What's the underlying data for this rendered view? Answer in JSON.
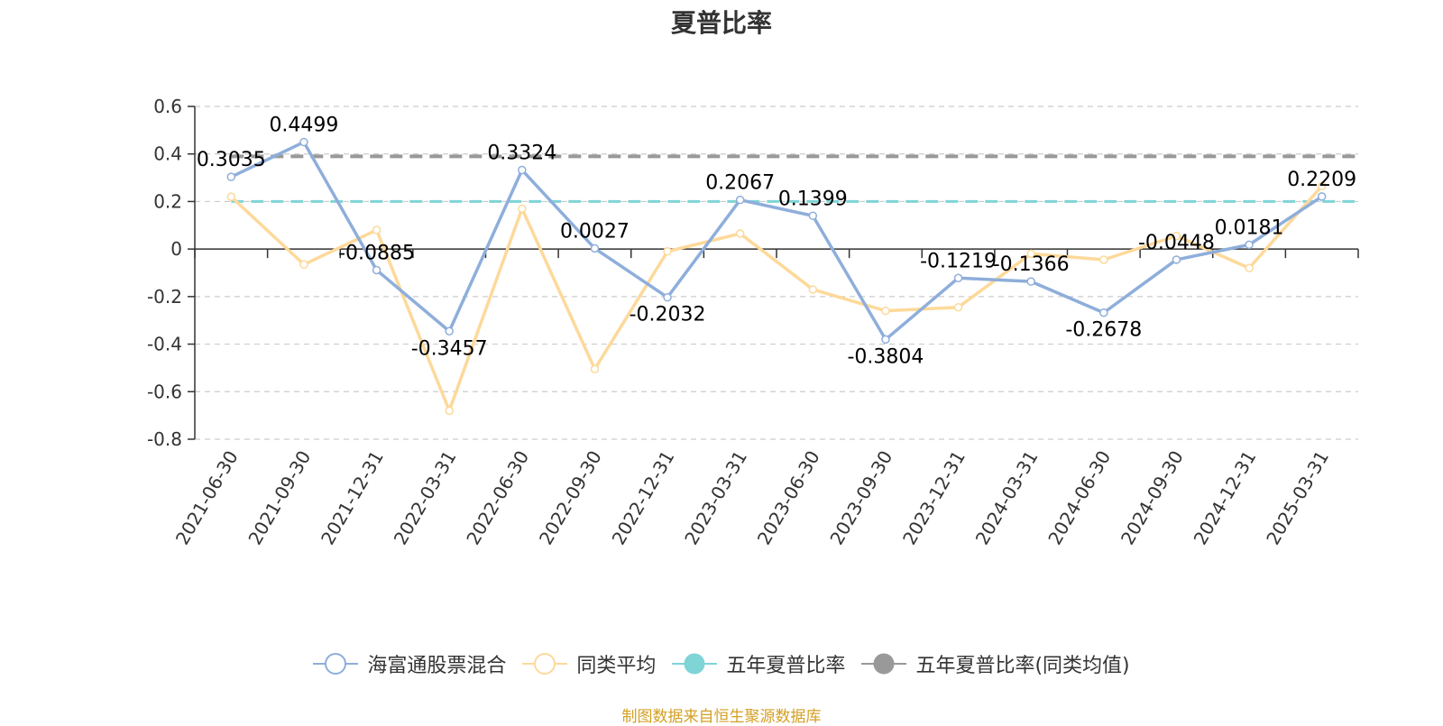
{
  "colors": {
    "fund": "#8eaedb",
    "peer": "#fdd99a",
    "five_year": "#7fd4d6",
    "five_year_peer": "#999999",
    "source_text": "#d4a024"
  },
  "chart_data": {
    "type": "line",
    "title": "夏普比率",
    "x": [
      "2021-06-30",
      "2021-09-30",
      "2021-12-31",
      "2022-03-31",
      "2022-06-30",
      "2022-09-30",
      "2022-12-31",
      "2023-03-31",
      "2023-06-30",
      "2023-09-30",
      "2023-12-31",
      "2024-03-31",
      "2024-06-30",
      "2024-09-30",
      "2024-12-31",
      "2025-03-31"
    ],
    "ylim": [
      -0.8,
      0.6
    ],
    "yticks": [
      "0.6",
      "0.4",
      "0.2",
      "0",
      "-0.2",
      "-0.4",
      "-0.6",
      "-0.8"
    ],
    "ytick_values": [
      0.6,
      0.4,
      0.2,
      0,
      -0.2,
      -0.4,
      -0.6,
      -0.8
    ],
    "grid": true,
    "legend_position": "bottom",
    "series": [
      {
        "name": "海富通股票混合",
        "values": [
          0.3035,
          0.4499,
          -0.0885,
          -0.3457,
          0.3324,
          0.0027,
          -0.2032,
          0.2067,
          0.1399,
          -0.3804,
          -0.1219,
          -0.1366,
          -0.2678,
          -0.0448,
          0.0181,
          0.2209
        ],
        "labels": [
          "0.3035",
          "0.4499",
          "-0.0885",
          "-0.3457",
          "0.3324",
          "0.0027",
          "-0.2032",
          "0.2067",
          "0.1399",
          "-0.3804",
          "-0.1219",
          "-0.1366",
          "-0.2678",
          "-0.0448",
          "0.0181",
          "0.2209"
        ]
      },
      {
        "name": "同类平均",
        "values": [
          0.22,
          -0.065,
          0.08,
          -0.68,
          0.17,
          -0.505,
          -0.01,
          0.065,
          -0.17,
          -0.26,
          -0.245,
          -0.02,
          -0.045,
          0.055,
          -0.08,
          0.265
        ]
      },
      {
        "name": "五年夏普比率",
        "constant": 0.2
      },
      {
        "name": "五年夏普比率(同类均值)",
        "constant": 0.39
      }
    ]
  },
  "legend": {
    "fund": "海富通股票混合",
    "peer": "同类平均",
    "five_year": "五年夏普比率",
    "five_year_peer": "五年夏普比率(同类均值)"
  },
  "source": "制图数据来自恒生聚源数据库"
}
